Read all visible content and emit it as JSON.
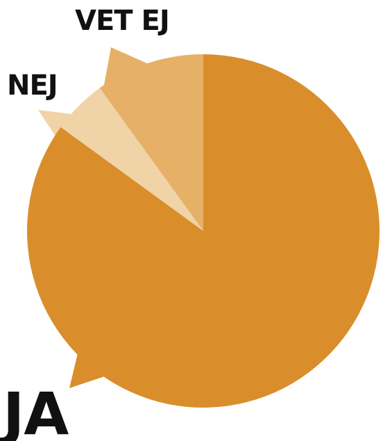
{
  "chart_data": {
    "type": "pie",
    "title": "",
    "slices": [
      {
        "label": "JA",
        "value": 85,
        "color": "#D98E2B"
      },
      {
        "label": "NEJ",
        "value": 5,
        "color": "#F0D3A6"
      },
      {
        "label": "VET EJ",
        "value": 10,
        "color": "#E6B066"
      }
    ],
    "start": "top",
    "direction": "clockwise",
    "labels_outside": true,
    "legend": "none"
  }
}
